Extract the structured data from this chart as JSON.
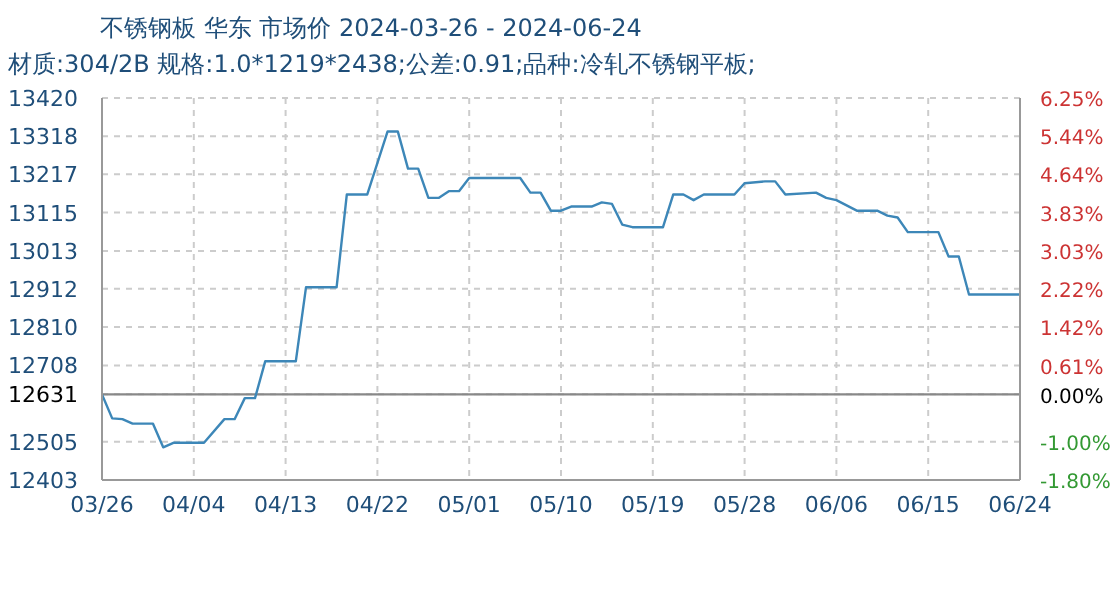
{
  "chart_data": {
    "type": "line",
    "title": "不锈钢板 华东 市场价 2024-03-26 - 2024-06-24",
    "subtitle": "材质:304/2B 规格:1.0*1219*2438;公差:0.91;品种:冷轧不锈钢平板;",
    "x": [
      "2024-03-26",
      "2024-03-27",
      "2024-03-28",
      "2024-03-29",
      "2024-03-31",
      "2024-04-01",
      "2024-04-02",
      "2024-04-05",
      "2024-04-07",
      "2024-04-08",
      "2024-04-09",
      "2024-04-10",
      "2024-04-11",
      "2024-04-14",
      "2024-04-15",
      "2024-04-18",
      "2024-04-19",
      "2024-04-21",
      "2024-04-23",
      "2024-04-24",
      "2024-04-25",
      "2024-04-26",
      "2024-04-27",
      "2024-04-28",
      "2024-04-29",
      "2024-04-30",
      "2024-05-01",
      "2024-05-06",
      "2024-05-07",
      "2024-05-08",
      "2024-05-09",
      "2024-05-10",
      "2024-05-11",
      "2024-05-13",
      "2024-05-14",
      "2024-05-15",
      "2024-05-16",
      "2024-05-17",
      "2024-05-20",
      "2024-05-21",
      "2024-05-22",
      "2024-05-23",
      "2024-05-24",
      "2024-05-27",
      "2024-05-28",
      "2024-05-30",
      "2024-05-31",
      "2024-06-01",
      "2024-06-04",
      "2024-06-05",
      "2024-06-06",
      "2024-06-08",
      "2024-06-10",
      "2024-06-11",
      "2024-06-12",
      "2024-06-13",
      "2024-06-16",
      "2024-06-17",
      "2024-06-18",
      "2024-06-19",
      "2024-06-24"
    ],
    "series": [
      {
        "color": "#3d87b8",
        "values": [
          12631,
          12567,
          12565,
          12553,
          12553,
          12490,
          12502,
          12502,
          12565,
          12565,
          12621,
          12621,
          12719,
          12719,
          12916,
          12916,
          13163,
          13163,
          13331,
          13331,
          13232,
          13232,
          13154,
          13154,
          13172,
          13172,
          13207,
          13207,
          13168,
          13168,
          13120,
          13120,
          13131,
          13131,
          13142,
          13138,
          13083,
          13076,
          13076,
          13163,
          13163,
          13148,
          13163,
          13163,
          13193,
          13198,
          13198,
          13163,
          13168,
          13154,
          13148,
          13120,
          13120,
          13107,
          13102,
          13063,
          13063,
          12998,
          12998,
          12897,
          12897
        ]
      }
    ],
    "xlim": [
      "2024-03-26",
      "2024-06-24"
    ],
    "xticks": [
      {
        "value": "2024-03-26",
        "label": "03/26"
      },
      {
        "value": "2024-04-04",
        "label": "04/04"
      },
      {
        "value": "2024-04-13",
        "label": "04/13"
      },
      {
        "value": "2024-04-22",
        "label": "04/22"
      },
      {
        "value": "2024-05-01",
        "label": "05/01"
      },
      {
        "value": "2024-05-10",
        "label": "05/10"
      },
      {
        "value": "2024-05-19",
        "label": "05/19"
      },
      {
        "value": "2024-05-28",
        "label": "05/28"
      },
      {
        "value": "2024-06-06",
        "label": "06/06"
      },
      {
        "value": "2024-06-15",
        "label": "06/15"
      },
      {
        "value": "2024-06-24",
        "label": "06/24"
      }
    ],
    "ylim": [
      12403,
      13420
    ],
    "yticks": [
      12403,
      12505,
      12631,
      12708,
      12810,
      12912,
      13013,
      13115,
      13217,
      13318,
      13420
    ],
    "y2lim": [
      -1.8,
      6.25
    ],
    "y2ticks": [
      {
        "value": -1.8,
        "label": "-1.80%"
      },
      {
        "value": -1,
        "label": "-1.00%"
      },
      {
        "value": 0,
        "label": "0.00%"
      },
      {
        "value": 0.61,
        "label": "0.61%"
      },
      {
        "value": 1.42,
        "label": "1.42%"
      },
      {
        "value": 2.22,
        "label": "2.22%"
      },
      {
        "value": 3.03,
        "label": "3.03%"
      },
      {
        "value": 3.83,
        "label": "3.83%"
      },
      {
        "value": 4.64,
        "label": "4.64%"
      },
      {
        "value": 5.44,
        "label": "5.44%"
      },
      {
        "value": 6.25,
        "label": "6.25%"
      }
    ],
    "ref_lines": [
      {
        "axis": "y",
        "value": 12631,
        "color": "#888888"
      }
    ],
    "grid": true,
    "marker": "none",
    "line_style": "solid"
  }
}
